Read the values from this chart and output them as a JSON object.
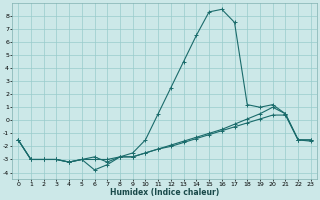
{
  "xlabel": "Humidex (Indice chaleur)",
  "bg_color": "#cce8e8",
  "grid_color": "#99cccc",
  "line_color": "#1a6b6b",
  "xlim": [
    -0.5,
    23.5
  ],
  "ylim": [
    -4.5,
    9.0
  ],
  "xticks": [
    0,
    1,
    2,
    3,
    4,
    5,
    6,
    7,
    8,
    9,
    10,
    11,
    12,
    13,
    14,
    15,
    16,
    17,
    18,
    19,
    20,
    21,
    22,
    23
  ],
  "yticks": [
    -4,
    -3,
    -2,
    -1,
    0,
    1,
    2,
    3,
    4,
    5,
    6,
    7,
    8
  ],
  "series": [
    {
      "x": [
        0,
        1,
        2,
        3,
        4,
        5,
        6,
        7,
        8,
        9,
        10,
        11,
        12,
        13,
        14,
        15,
        16,
        17,
        18,
        19,
        20,
        21,
        22,
        23
      ],
      "y": [
        -1.5,
        -3.0,
        -3.0,
        -3.0,
        -3.2,
        -3.0,
        -3.8,
        -3.4,
        -2.8,
        -2.5,
        -1.5,
        0.5,
        2.5,
        4.5,
        6.5,
        8.3,
        8.5,
        7.5,
        1.2,
        1.0,
        1.2,
        0.5,
        -1.5,
        -1.5
      ]
    },
    {
      "x": [
        0,
        1,
        2,
        3,
        4,
        5,
        6,
        7,
        8,
        9,
        10,
        11,
        12,
        13,
        14,
        15,
        16,
        17,
        18,
        19,
        20,
        21,
        22,
        23
      ],
      "y": [
        -1.5,
        -3.0,
        -3.0,
        -3.0,
        -3.2,
        -3.0,
        -2.8,
        -3.2,
        -2.8,
        -2.8,
        -2.5,
        -2.2,
        -2.0,
        -1.7,
        -1.4,
        -1.1,
        -0.8,
        -0.5,
        -0.2,
        0.1,
        0.4,
        0.4,
        -1.5,
        -1.6
      ]
    },
    {
      "x": [
        0,
        1,
        2,
        3,
        4,
        5,
        6,
        7,
        8,
        9,
        10,
        11,
        12,
        13,
        14,
        15,
        16,
        17,
        18,
        19,
        20,
        21,
        22,
        23
      ],
      "y": [
        -1.5,
        -3.0,
        -3.0,
        -3.0,
        -3.2,
        -3.0,
        -3.0,
        -3.0,
        -2.8,
        -2.8,
        -2.5,
        -2.2,
        -1.9,
        -1.6,
        -1.3,
        -1.0,
        -0.7,
        -0.3,
        0.1,
        0.5,
        1.0,
        0.5,
        -1.5,
        -1.5
      ]
    }
  ]
}
